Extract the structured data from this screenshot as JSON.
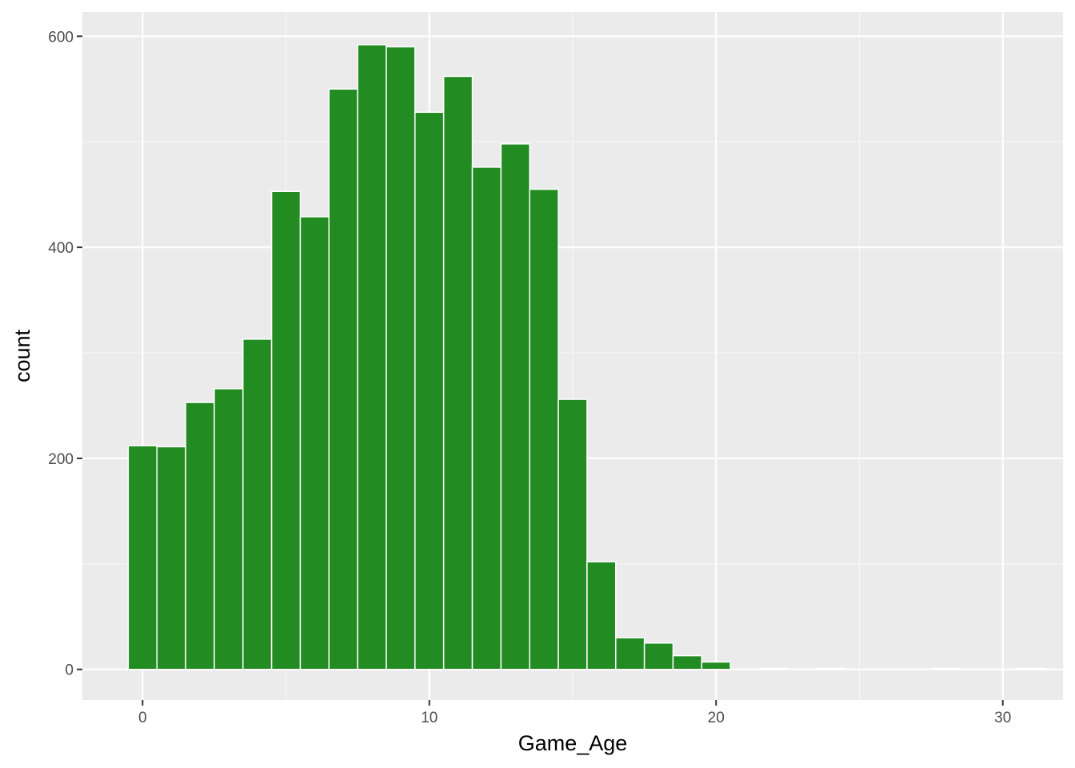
{
  "chart_data": {
    "type": "bar",
    "xlabel": "Game_Age",
    "ylabel": "count",
    "bin_width": 1,
    "x": [
      0,
      1,
      2,
      3,
      4,
      5,
      6,
      7,
      8,
      9,
      10,
      11,
      12,
      13,
      14,
      15,
      16,
      17,
      18,
      19,
      20,
      21,
      22,
      23,
      24,
      25,
      26,
      27,
      28,
      29,
      30,
      31
    ],
    "values": [
      212,
      211,
      253,
      266,
      313,
      453,
      429,
      550,
      592,
      590,
      528,
      562,
      476,
      498,
      455,
      256,
      102,
      30,
      25,
      13,
      7,
      0,
      1,
      0,
      1,
      0,
      0,
      0,
      1,
      0,
      0,
      1
    ],
    "xlim": [
      -2.1,
      32.1
    ],
    "ylim": [
      -29,
      623
    ],
    "x_ticks": [
      0,
      10,
      20,
      30
    ],
    "x_tick_labels": [
      "0",
      "10",
      "20",
      "30"
    ],
    "y_ticks": [
      0,
      200,
      400,
      600
    ],
    "y_tick_labels": [
      "0",
      "200",
      "400",
      "600"
    ],
    "grid": true,
    "legend": "none",
    "colors": {
      "bar_fill": "#228B22",
      "panel_background": "#EBEBEB",
      "grid_major": "#FFFFFF",
      "grid_minor": "#F7F7F7"
    }
  }
}
